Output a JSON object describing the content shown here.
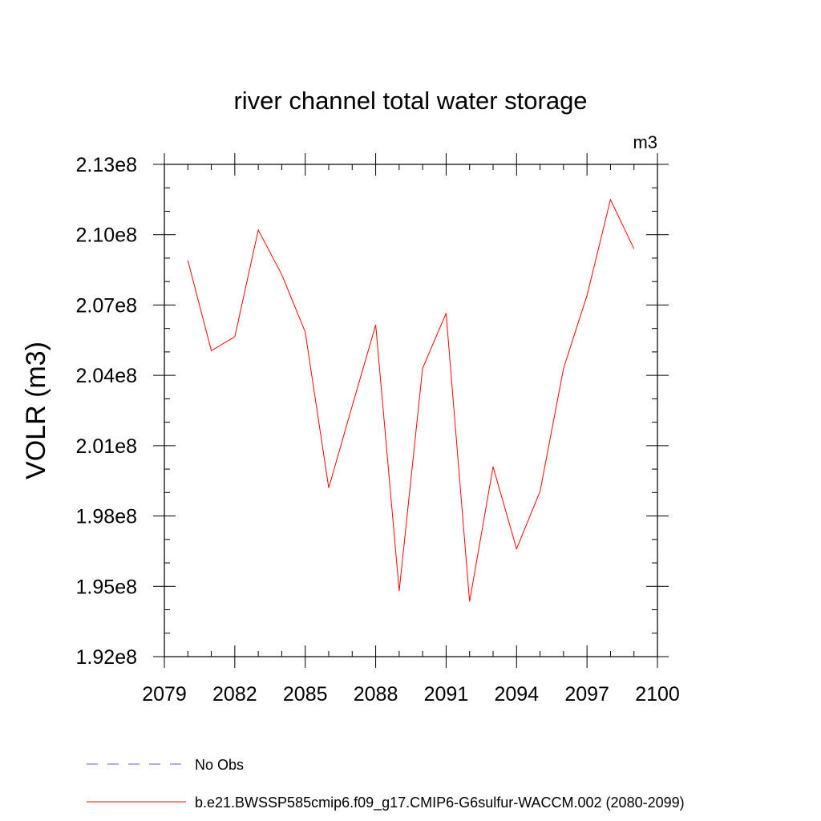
{
  "chart_data": {
    "type": "line",
    "title": "river channel total water storage",
    "units_label": "m3",
    "ylabel": "VOLR  (m3)",
    "xlabel": "",
    "xlim": [
      2079,
      2100
    ],
    "ylim": [
      192000000,
      213000000
    ],
    "x_ticks": [
      2079,
      2082,
      2085,
      2088,
      2091,
      2094,
      2097,
      2100
    ],
    "y_ticks": [
      192000000,
      195000000,
      198000000,
      201000000,
      204000000,
      207000000,
      210000000,
      213000000
    ],
    "x_tick_labels": [
      "2079",
      "2082",
      "2085",
      "2088",
      "2091",
      "2094",
      "2097",
      "2100"
    ],
    "y_tick_labels": [
      "1.92e8",
      "1.95e8",
      "1.98e8",
      "2.01e8",
      "2.04e8",
      "2.07e8",
      "2.10e8",
      "2.13e8"
    ],
    "grid": false,
    "legend_position": "bottom",
    "series": [
      {
        "name": "b.e21.BWSSP585cmip6.f09_g17.CMIP6-G6sulfur-WACCM.002 (2080-2099)",
        "color": "#ff0000",
        "style": "solid",
        "x": [
          2080,
          2081,
          2082,
          2083,
          2084,
          2085,
          2086,
          2087,
          2088,
          2089,
          2090,
          2091,
          2092,
          2093,
          2094,
          2095,
          2096,
          2097,
          2098,
          2099
        ],
        "values": [
          208900000,
          205050000,
          205650000,
          210200000,
          208300000,
          205850000,
          199200000,
          202700000,
          206150000,
          194800000,
          204300000,
          206650000,
          194350000,
          200100000,
          196600000,
          199050000,
          204300000,
          207400000,
          211500000,
          209400000
        ]
      },
      {
        "name": "No Obs",
        "color": "#6a5acd",
        "style": "dashed",
        "x": [],
        "values": []
      }
    ]
  }
}
